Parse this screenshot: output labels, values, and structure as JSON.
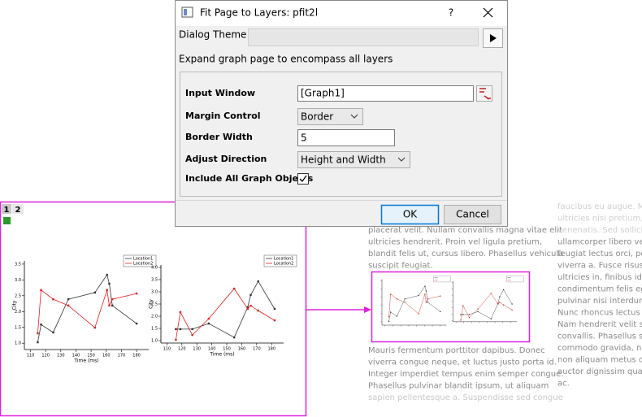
{
  "dialog": {
    "title": "Fit Page to Layers: pfit2l",
    "help": "?",
    "theme_label": "Dialog Theme",
    "description": "Expand graph page to encompass all layers",
    "fields": [
      {
        "label": "Input Window",
        "value": "[Graph1]"
      },
      {
        "label": "Margin Control",
        "value": "Border"
      },
      {
        "label": "Border Width",
        "value": "5"
      },
      {
        "label": "Adjust Direction",
        "value": "Height and Width"
      }
    ],
    "checkbox": "Include All Graph Objects",
    "buttons": [
      "OK",
      "Cancel"
    ]
  },
  "graph_window": {
    "tabs": [
      "1",
      "2"
    ],
    "layers": [
      {
        "type": "line",
        "xlabel": "Time (ms)",
        "ylabel": "City",
        "x": [
          114.8,
          117,
          125,
          135,
          152.5,
          160.5,
          162,
          164,
          180
        ],
        "series": [
          {
            "name": "Location1",
            "color": "#333333",
            "values": [
              1.03,
              1.59,
              1.34,
              2.39,
              2.6,
              3.16,
              2.88,
              2.19,
              1.62
            ]
          },
          {
            "name": "Location2",
            "color": "#e02020",
            "values": [
              1.31,
              2.68,
              2.39,
              2.19,
              1.49,
              2.68,
              2.19,
              2.39,
              2.57
            ]
          }
        ],
        "xlim": [
          106,
          188
        ],
        "ylim": [
          0.8,
          3.6
        ],
        "xticks": [
          110,
          120,
          130,
          140,
          150,
          160,
          170,
          180
        ],
        "yticks": [
          {
            "value": 1,
            "label": "1.0"
          },
          {
            "value": 1.5,
            "label": "1.5"
          },
          {
            "value": 2,
            "label": "2.0"
          },
          {
            "value": 2.5,
            "label": "2.5"
          },
          {
            "value": 3,
            "label": "3.0"
          },
          {
            "value": 3.5,
            "label": "3.5"
          }
        ]
      },
      {
        "type": "line",
        "xlabel": "Time (ms)",
        "ylabel": "City",
        "x": [
          116,
          119,
          127,
          138,
          155,
          164,
          166,
          171,
          182
        ],
        "series": [
          {
            "name": "Location1",
            "color": "#333333",
            "values": [
              1.47,
              1.47,
              1.47,
              1.7,
              1.13,
              2.37,
              2.87,
              3.43,
              2.3
            ]
          },
          {
            "name": "Location2",
            "color": "#e02020",
            "values": [
              1.03,
              2.17,
              1.23,
              1.9,
              3.13,
              2.3,
              2.43,
              2.23,
              1.83
            ]
          }
        ],
        "xlim": [
          106,
          188
        ],
        "ylim": [
          0.9,
          4.1
        ],
        "xticks": [
          110,
          120,
          130,
          140,
          150,
          160,
          170,
          180
        ],
        "yticks": [
          {
            "value": 1,
            "label": "1.0"
          },
          {
            "value": 1.5,
            "label": "1.5"
          },
          {
            "value": 2,
            "label": "2.0"
          },
          {
            "value": 2.5,
            "label": "2.5"
          },
          {
            "value": 3,
            "label": "3.0"
          },
          {
            "value": 3.5,
            "label": "3.5"
          },
          {
            "value": 4,
            "label": "4.0"
          }
        ]
      }
    ]
  },
  "document": {
    "column_1": [
      "placerat velit. Nullam convallis magna vitae elit",
      "ultricies hendrerit. Proin vel ligula pretium,",
      "blandit felis ut, cursus libero. Phasellus vehicula",
      "suscipit feugiat."
    ],
    "column_1_after": [
      "Mauris fermentum porttitor dapibus. Donec",
      "viverra congue neque, et luctus justo porta id.",
      "Integer imperdiet tempus enim semper congue.",
      "Phasellus pulvinar blandit ipsum, ut aliquam",
      "sapien pellentesque a. Suspendisse sed congue"
    ],
    "column_2": [
      "faucibus eu augue. Maec",
      "ultricies nisi pretium, ne",
      "venenatis. Sed sollicitudi",
      "ullamcorper libero vestib",
      "feugiat lectus orci, peller",
      "viverra a. Fusce risus mas",
      "ultricies in, finibus id qua",
      "condimentum felis eget u",
      "pulvinar nisi interdum. A",
      "Nunc rhoncus lectus nulla",
      "Nam hendrerit velit sit ar",
      "convallis. Phasellus scele",
      "commodo gravida, nequ",
      "non aliquam metus orci l",
      "auctor dignissim quam, n",
      "ac."
    ]
  }
}
